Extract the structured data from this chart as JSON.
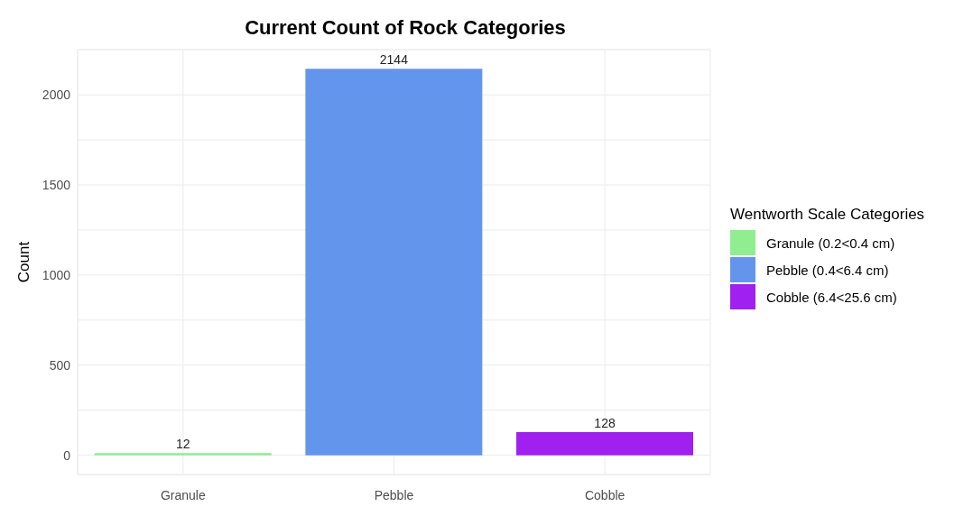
{
  "chart_data": {
    "type": "bar",
    "title": "Current Count of Rock Categories",
    "ylabel": "Count",
    "legend_title": "Wentworth Scale Categories",
    "categories": [
      "Granule",
      "Pebble",
      "Cobble"
    ],
    "series": [
      {
        "name": "Granule (0.2<0.4 cm)",
        "color": "#90ee90",
        "values": [
          12,
          null,
          null
        ]
      },
      {
        "name": "Pebble (0.4<6.4 cm)",
        "color": "#6495ed",
        "values": [
          null,
          2144,
          null
        ]
      },
      {
        "name": "Cobble (6.4<25.6 cm)",
        "color": "#a020f0",
        "values": [
          null,
          null,
          128
        ]
      }
    ],
    "stacked": true,
    "data_labels": true,
    "legend": "right",
    "grid": true,
    "ylim": [
      -107,
      2251
    ],
    "yticks": [
      0,
      {
        "value": 250,
        "label": null
      },
      500,
      {
        "value": 750,
        "label": null
      },
      1000,
      {
        "value": 1250,
        "label": null
      },
      1500,
      {
        "value": 1750,
        "label": null
      },
      2000,
      {
        "value": 2250,
        "label": null
      }
    ]
  }
}
